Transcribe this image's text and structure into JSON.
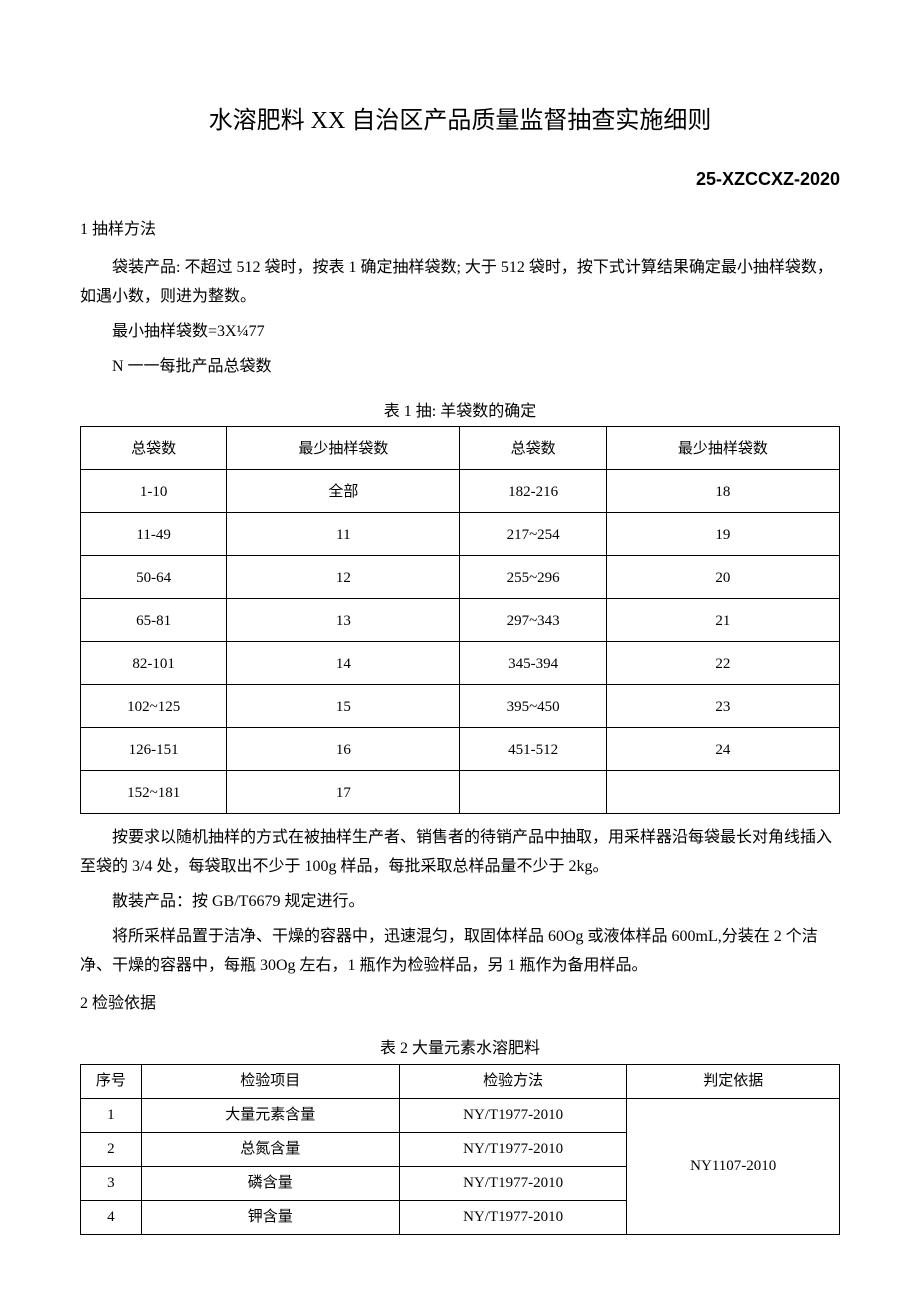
{
  "title": "水溶肥料 XX 自治区产品质量监督抽查实施细则",
  "doc_code": "25-XZCCXZ-2020",
  "section1": {
    "heading": "1 抽样方法",
    "p1": "袋装产品: 不超过 512 袋时，按表 1 确定抽样袋数; 大于 512 袋时，按下式计算结果确定最小抽样袋数，如遇小数，则进为整数。",
    "p2": "最小抽样袋数=3X¼77",
    "p3": "N 一一每批产品总袋数"
  },
  "table1": {
    "caption": "表 1 抽:  羊袋数的确定",
    "headers": [
      "总袋数",
      "最少抽样袋数",
      "总袋数",
      "最少抽样袋数"
    ],
    "rows": [
      [
        "1-10",
        "全部",
        "182-216",
        "18"
      ],
      [
        "11-49",
        "11",
        "217~254",
        "19"
      ],
      [
        "50-64",
        "12",
        "255~296",
        "20"
      ],
      [
        "65-81",
        "13",
        "297~343",
        "21"
      ],
      [
        "82-101",
        "14",
        "345-394",
        "22"
      ],
      [
        "102~125",
        "15",
        "395~450",
        "23"
      ],
      [
        "126-151",
        "16",
        "451-512",
        "24"
      ],
      [
        "152~181",
        "17",
        "",
        ""
      ]
    ]
  },
  "after_t1": {
    "p1": "按要求以随机抽样的方式在被抽样生产者、销售者的待销产品中抽取，用采样器沿每袋最长对角线插入至袋的 3/4 处，每袋取出不少于 100g 样品，每批采取总样品量不少于 2kg。",
    "p2": "散装产品：按 GB/T6679 规定进行。",
    "p3": "将所采样品置于洁净、干燥的容器中，迅速混匀，取固体样品 60Og 或液体样品 600mL,分装在 2 个洁净、干燥的容器中，每瓶 30Og 左右，1 瓶作为检验样品，另 1 瓶作为备用样品。"
  },
  "section2": {
    "heading": "2 检验依据"
  },
  "table2": {
    "caption": "表 2 大量元素水溶肥料",
    "headers": [
      "序号",
      "检验项目",
      "检验方法",
      "判定依据"
    ],
    "basis": "NY1107-2010",
    "rows": [
      [
        "1",
        "大量元素含量",
        "NY/T1977-2010"
      ],
      [
        "2",
        "总氮含量",
        "NY/T1977-2010"
      ],
      [
        "3",
        "磷含量",
        "NY/T1977-2010"
      ],
      [
        "4",
        "钾含量",
        "NY/T1977-2010"
      ]
    ]
  }
}
